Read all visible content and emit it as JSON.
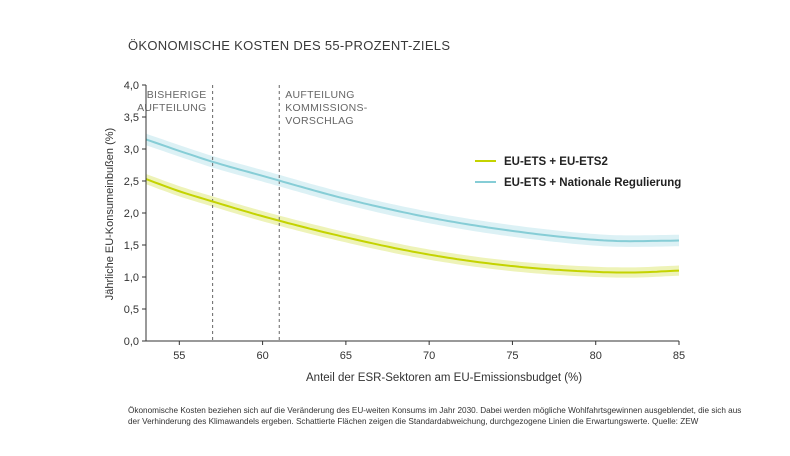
{
  "title": "ÖKONOMISCHE KOSTEN DES 55-PROZENT-ZIELS",
  "footnote": {
    "line1": "Ökonomische Kosten beziehen sich auf die Veränderung des EU-weiten Konsums im Jahr 2030. Dabei werden mögliche Wohlfahrtsgewinnen ausgeblendet, die sich aus",
    "line2": "der Verhinderung des Klimawandels ergeben. Schattierte Flächen zeigen die Standardabweichung, durchgezogene Linien die Erwartungswerte.",
    "source": "Quelle: ZEW"
  },
  "colors": {
    "series1_line": "#c4d300",
    "series1_band": "#eef3b8",
    "series2_line": "#86cdd6",
    "series2_band": "#dcf1f5",
    "axis": "#333333",
    "reference_line": "#666666"
  },
  "chart_data": {
    "type": "line",
    "xlabel": "Anteil der ESR-Sektoren am EU-Emissionsbudget (%)",
    "ylabel": "Jährliche EU-Konsumeinbußen (%)",
    "xlim": [
      53,
      85
    ],
    "ylim": [
      0,
      4
    ],
    "xticks": [
      55,
      60,
      65,
      70,
      75,
      80,
      85
    ],
    "yticks": [
      "0,0",
      "0,5",
      "1,0",
      "1,5",
      "2,0",
      "2,5",
      "3,0",
      "3,5",
      "4,0"
    ],
    "grid": false,
    "legend_position": "right",
    "series": [
      {
        "name": "EU-ETS + EU-ETS2",
        "x": [
          53,
          55,
          57,
          60,
          65,
          70,
          75,
          80,
          82,
          85
        ],
        "values": [
          2.53,
          2.34,
          2.18,
          1.95,
          1.62,
          1.35,
          1.17,
          1.08,
          1.07,
          1.1
        ],
        "std": 0.08
      },
      {
        "name": "EU-ETS + Nationale Regulierung",
        "x": [
          53,
          55,
          57,
          60,
          65,
          70,
          75,
          80,
          82,
          85
        ],
        "values": [
          3.15,
          2.97,
          2.8,
          2.58,
          2.22,
          1.93,
          1.72,
          1.58,
          1.56,
          1.57
        ],
        "std": 0.09
      }
    ],
    "reference_lines": [
      {
        "x": 57,
        "label": [
          "BISHERIGE",
          "AUFTEILUNG"
        ]
      },
      {
        "x": 61,
        "label": [
          "AUFTEILUNG",
          "KOMMISSIONS-",
          "VORSCHLAG"
        ]
      }
    ]
  }
}
